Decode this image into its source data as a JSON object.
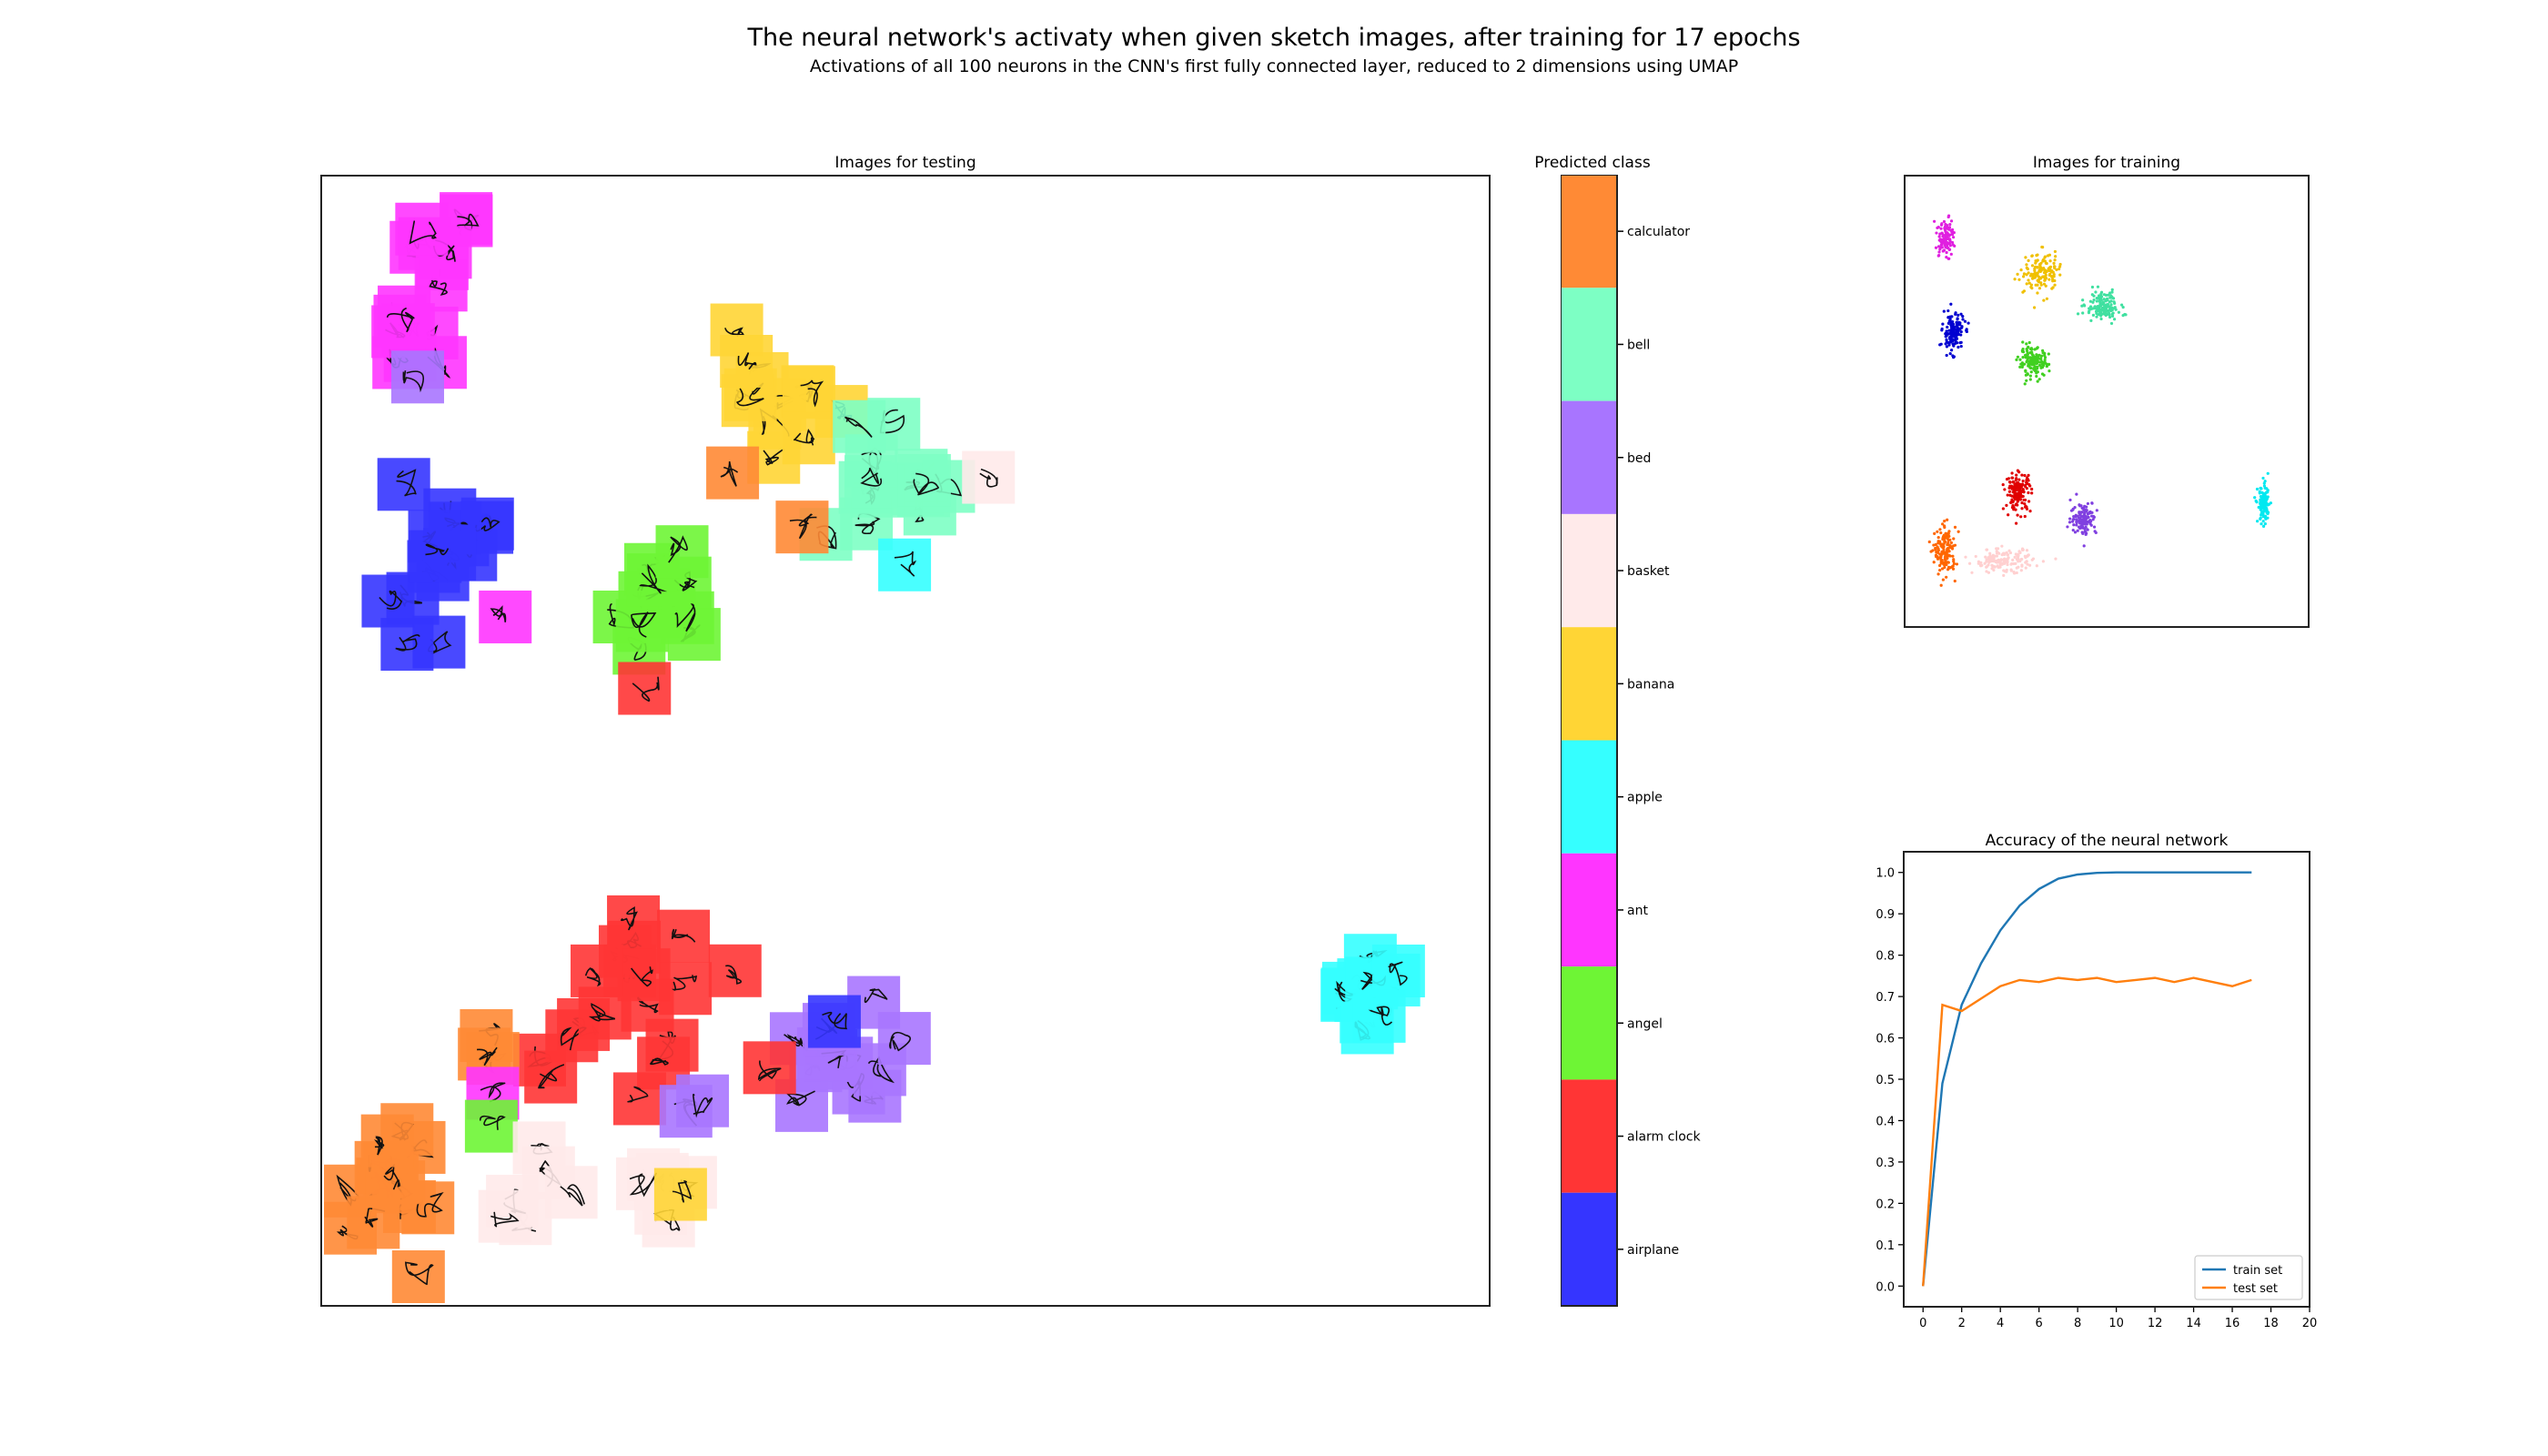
{
  "header": {
    "title": "The neural network's activaty when given sketch images, after training for 17 epochs",
    "subtitle": "Activations of all 100 neurons in the CNN's first fully connected layer, reduced to 2 dimensions using UMAP"
  },
  "colors": {
    "airplane": "#3535ff",
    "alarm clock": "#ff3535",
    "angel": "#6ef535",
    "ant": "#ff35ff",
    "apple": "#35ffff",
    "banana": "#ffd535",
    "basket": "#ffeaea",
    "bed": "#a875ff",
    "bell": "#7dffc4",
    "calculator": "#ff8a35"
  },
  "chart_data": [
    {
      "id": "test-umap",
      "type": "scatter",
      "title": "Images for testing",
      "xlim": [
        0,
        100
      ],
      "ylim": [
        0,
        100
      ],
      "grid": false,
      "note_marks": "thumbnail squares colored by predicted class",
      "clusters": [
        {
          "class": "ant",
          "x": 8,
          "y": 90,
          "spread": [
            4,
            8
          ],
          "n": 16
        },
        {
          "class": "airplane",
          "x": 9,
          "y": 66,
          "spread": [
            5,
            7
          ],
          "n": 16
        },
        {
          "class": "ant",
          "x": 15,
          "y": 61,
          "spread": [
            0.5,
            0.5
          ],
          "n": 1
        },
        {
          "class": "bed",
          "x": 8,
          "y": 83,
          "spread": [
            1,
            1
          ],
          "n": 1
        },
        {
          "class": "banana",
          "x": 39,
          "y": 81,
          "spread": [
            5,
            5
          ],
          "n": 12
        },
        {
          "class": "bell",
          "x": 48,
          "y": 73,
          "spread": [
            6,
            4
          ],
          "n": 14
        },
        {
          "class": "calculator",
          "x": 35,
          "y": 74,
          "spread": [
            0.5,
            0.5
          ],
          "n": 1
        },
        {
          "class": "calculator",
          "x": 41,
          "y": 69,
          "spread": [
            0.5,
            0.5
          ],
          "n": 1
        },
        {
          "class": "apple",
          "x": 50,
          "y": 66,
          "spread": [
            0.5,
            0.5
          ],
          "n": 1
        },
        {
          "class": "basket",
          "x": 57,
          "y": 74,
          "spread": [
            0.5,
            0.5
          ],
          "n": 1
        },
        {
          "class": "angel",
          "x": 29,
          "y": 62,
          "spread": [
            4,
            6
          ],
          "n": 12
        },
        {
          "class": "alarm clock",
          "x": 28,
          "y": 55,
          "spread": [
            0.5,
            0.5
          ],
          "n": 1
        },
        {
          "class": "alarm clock",
          "x": 25,
          "y": 26,
          "spread": [
            7,
            8
          ],
          "n": 18
        },
        {
          "class": "calculator",
          "x": 6,
          "y": 9,
          "spread": [
            4,
            6
          ],
          "n": 14
        },
        {
          "class": "calculator",
          "x": 13,
          "y": 22,
          "spread": [
            2,
            2
          ],
          "n": 3
        },
        {
          "class": "ant",
          "x": 14,
          "y": 18,
          "spread": [
            0.5,
            0.5
          ],
          "n": 1
        },
        {
          "class": "angel",
          "x": 14,
          "y": 15,
          "spread": [
            0.5,
            0.5
          ],
          "n": 1
        },
        {
          "class": "basket",
          "x": 17,
          "y": 10,
          "spread": [
            4,
            4
          ],
          "n": 6
        },
        {
          "class": "basket",
          "x": 28,
          "y": 10,
          "spread": [
            3,
            3
          ],
          "n": 6
        },
        {
          "class": "banana",
          "x": 30,
          "y": 9,
          "spread": [
            0.5,
            0.5
          ],
          "n": 1
        },
        {
          "class": "bed",
          "x": 45,
          "y": 22,
          "spread": [
            4,
            5
          ],
          "n": 12
        },
        {
          "class": "bed",
          "x": 32,
          "y": 17,
          "spread": [
            2,
            1
          ],
          "n": 2
        },
        {
          "class": "airplane",
          "x": 44,
          "y": 25,
          "spread": [
            0.5,
            0.5
          ],
          "n": 1
        },
        {
          "class": "alarm clock",
          "x": 38,
          "y": 20,
          "spread": [
            0.5,
            0.5
          ],
          "n": 1
        },
        {
          "class": "apple",
          "x": 91,
          "y": 25,
          "spread": [
            2.5,
            6
          ],
          "n": 12
        }
      ]
    },
    {
      "id": "colorbar",
      "type": "colorbar",
      "title": "Predicted class",
      "labels": [
        "calculator",
        "bell",
        "bed",
        "basket",
        "banana",
        "apple",
        "ant",
        "angel",
        "alarm clock",
        "airplane"
      ]
    },
    {
      "id": "train-umap",
      "type": "scatter",
      "title": "Images for training",
      "xlim": [
        0,
        100
      ],
      "ylim": [
        0,
        100
      ],
      "grid": false,
      "clusters": [
        {
          "class": "ant",
          "x": 8,
          "y": 88,
          "spread": [
            2,
            4
          ],
          "n": 110
        },
        {
          "class": "banana",
          "x": 33,
          "y": 80,
          "spread": [
            4,
            4
          ],
          "n": 150
        },
        {
          "class": "bell",
          "x": 49,
          "y": 72,
          "spread": [
            4,
            3
          ],
          "n": 150
        },
        {
          "class": "airplane",
          "x": 10,
          "y": 66,
          "spread": [
            2.5,
            4
          ],
          "n": 150
        },
        {
          "class": "angel",
          "x": 31,
          "y": 59,
          "spread": [
            3.5,
            3
          ],
          "n": 150
        },
        {
          "class": "alarm clock",
          "x": 27,
          "y": 29,
          "spread": [
            3,
            4
          ],
          "n": 150
        },
        {
          "class": "bed",
          "x": 44,
          "y": 23,
          "spread": [
            3,
            3.5
          ],
          "n": 130
        },
        {
          "class": "calculator",
          "x": 8,
          "y": 15,
          "spread": [
            2.5,
            5
          ],
          "n": 150
        },
        {
          "class": "basket",
          "x": 23,
          "y": 13,
          "spread": [
            7,
            2.5
          ],
          "n": 150
        },
        {
          "class": "apple",
          "x": 91,
          "y": 26,
          "spread": [
            1.5,
            4
          ],
          "n": 120
        }
      ]
    },
    {
      "id": "accuracy",
      "type": "line",
      "title": "Accuracy of the neural network",
      "xlim": [
        -1,
        20
      ],
      "ylim": [
        -0.05,
        1.05
      ],
      "xticks": [
        "0",
        "2",
        "4",
        "6",
        "8",
        "10",
        "12",
        "14",
        "16",
        "18",
        "20"
      ],
      "yticks": [
        "0.0",
        "0.1",
        "0.2",
        "0.3",
        "0.4",
        "0.5",
        "0.6",
        "0.7",
        "0.8",
        "0.9",
        "1.0"
      ],
      "legend_position": "bottom-right",
      "x": [
        0,
        1,
        2,
        3,
        4,
        5,
        6,
        7,
        8,
        9,
        10,
        11,
        12,
        13,
        14,
        15,
        16,
        17
      ],
      "series": [
        {
          "name": "train set",
          "color": "#1f77b4",
          "values": [
            0.0,
            0.49,
            0.68,
            0.78,
            0.86,
            0.92,
            0.96,
            0.985,
            0.995,
            0.999,
            1.0,
            1.0,
            1.0,
            1.0,
            1.0,
            1.0,
            1.0,
            1.0
          ]
        },
        {
          "name": "test set",
          "color": "#ff7f0e",
          "values": [
            0.0,
            0.68,
            0.665,
            0.695,
            0.725,
            0.74,
            0.735,
            0.745,
            0.74,
            0.745,
            0.735,
            0.74,
            0.745,
            0.735,
            0.745,
            0.735,
            0.725,
            0.74
          ]
        }
      ]
    }
  ]
}
